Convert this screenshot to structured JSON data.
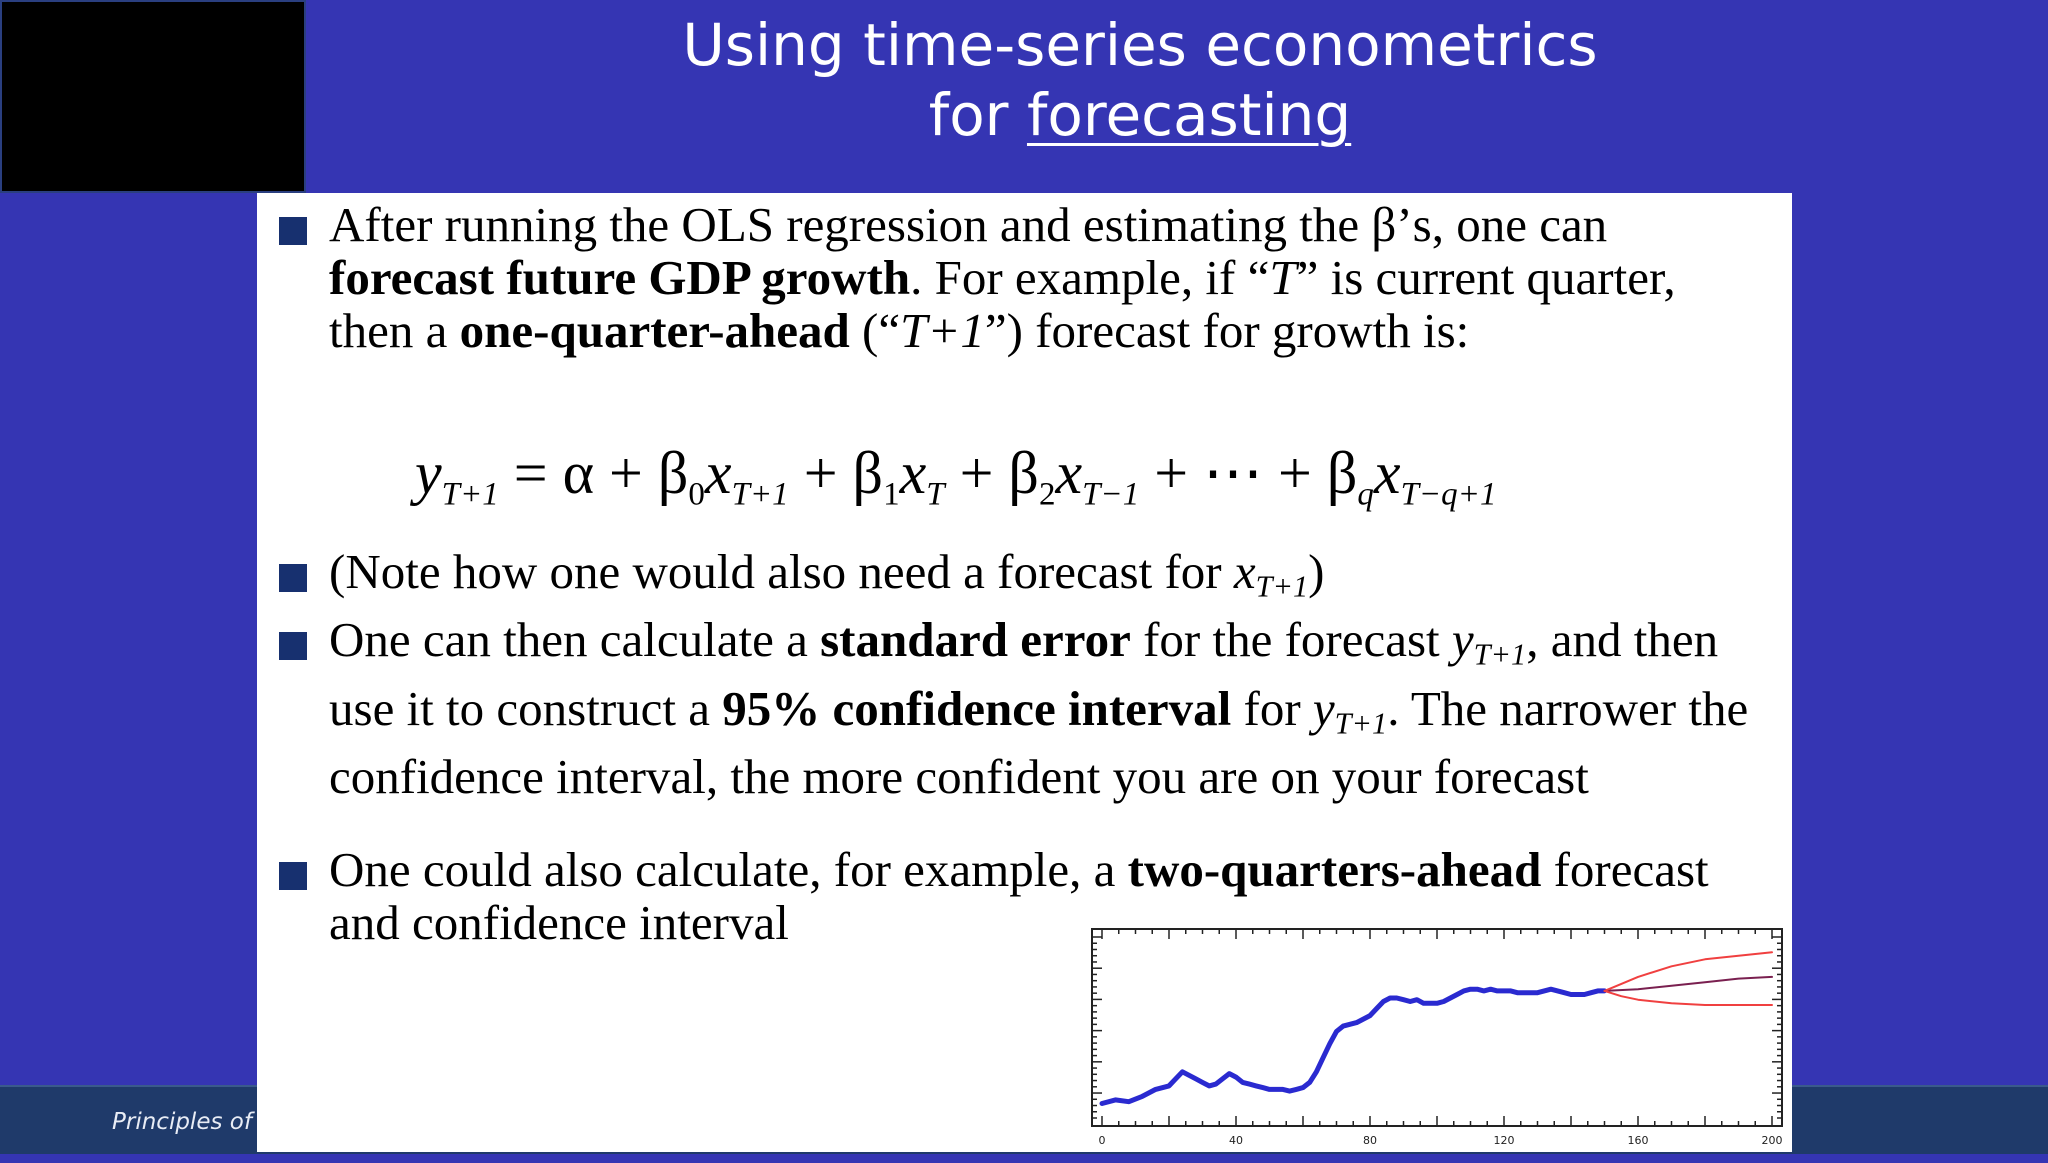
{
  "slide": {
    "title_line1": "Using time-series econometrics",
    "title_line2_prefix": "for ",
    "title_line2_link": "forecasting",
    "footer": "Principles of E"
  },
  "bullets": {
    "b1": {
      "p1": "After running the OLS regression and estimating the β’s, one can ",
      "p2": "forecast future GDP growth",
      "p3": ". For example, if “",
      "p4": "T",
      "p5": "” is current quarter, then a ",
      "p6": "one-quarter-ahead",
      "p7": " (“",
      "p8": "T+1",
      "p9": "”) forecast for growth is:"
    },
    "b2": {
      "p1": "(Note how one would also need a forecast for ",
      "p2": "x",
      "p3": "T+1",
      "p4": ")"
    },
    "b3": {
      "p1": "One can then calculate a ",
      "p2": "standard error",
      "p3": " for the forecast ",
      "p4": "y",
      "p5": "T+1",
      "p6": ", and then use it to construct a ",
      "p7": "95% confidence interval",
      "p8": " for ",
      "p9": "y",
      "p10": "T+1",
      "p11": ". The narrower the confidence interval, the more confident you are on your forecast"
    },
    "b4": {
      "p1": "One could also calculate, for example, a ",
      "p2": "two-quarters-ahead",
      "p3": " forecast and confidence interval"
    }
  },
  "equation": {
    "y": "y",
    "y_sub": "T+1",
    "eq": " = ",
    "alpha": "α",
    "plus": " + ",
    "b0": "β",
    "b0_sub": "0",
    "x0": "x",
    "x0_sub": "T+1",
    "b1": "β",
    "b1_sub": "1",
    "x1": "x",
    "x1_sub": "T",
    "b2": "β",
    "b2_sub": "2",
    "x2": "x",
    "x2_sub": "T−1",
    "dots": " + ⋯ + ",
    "bq": "β",
    "bq_sub": "q",
    "xq": "x",
    "xq_sub": "T−q+1"
  },
  "chart_data": {
    "type": "line",
    "x_ticks": [
      "0",
      "40",
      "80",
      "120",
      "160",
      "200"
    ],
    "xlim": [
      0,
      200
    ],
    "ylim": [
      0,
      1
    ],
    "colors": {
      "history": "#2a2ad0",
      "forecast": "#7a2050",
      "band": "#f04040"
    },
    "series": [
      {
        "x": [
          0,
          4,
          8,
          12,
          16,
          20,
          22,
          24,
          26,
          28,
          30,
          32,
          34,
          36,
          38,
          40,
          42,
          44,
          46,
          48,
          50,
          52,
          54,
          56,
          58,
          60,
          62,
          64,
          66,
          68,
          70,
          72,
          74,
          76,
          78,
          80,
          82,
          84,
          86,
          88,
          90,
          92,
          94,
          96,
          98,
          100,
          102,
          104,
          106,
          108,
          110,
          112,
          114,
          116,
          118,
          120,
          122,
          124,
          126,
          128,
          130,
          132,
          134,
          136,
          138,
          140,
          142,
          144,
          146,
          148,
          150
        ],
        "y": [
          0.16,
          0.18,
          0.17,
          0.2,
          0.24,
          0.26,
          0.3,
          0.34,
          0.32,
          0.3,
          0.28,
          0.26,
          0.27,
          0.3,
          0.33,
          0.31,
          0.28,
          0.27,
          0.26,
          0.25,
          0.24,
          0.24,
          0.24,
          0.23,
          0.24,
          0.25,
          0.28,
          0.34,
          0.42,
          0.5,
          0.57,
          0.6,
          0.61,
          0.62,
          0.64,
          0.66,
          0.7,
          0.74,
          0.76,
          0.76,
          0.75,
          0.74,
          0.75,
          0.73,
          0.73,
          0.73,
          0.74,
          0.76,
          0.78,
          0.8,
          0.81,
          0.81,
          0.8,
          0.81,
          0.8,
          0.8,
          0.8,
          0.79,
          0.79,
          0.79,
          0.79,
          0.8,
          0.81,
          0.8,
          0.79,
          0.78,
          0.78,
          0.78,
          0.79,
          0.8,
          0.8
        ]
      },
      {
        "x": [
          150,
          160,
          170,
          180,
          190,
          200
        ],
        "y": [
          0.8,
          0.81,
          0.83,
          0.85,
          0.87,
          0.88
        ]
      },
      {
        "x": [
          150,
          155,
          160,
          170,
          180,
          190,
          200
        ],
        "y": [
          0.8,
          0.84,
          0.88,
          0.94,
          0.98,
          1.0,
          1.02
        ]
      },
      {
        "x": [
          150,
          155,
          160,
          170,
          180,
          190,
          200
        ],
        "y": [
          0.8,
          0.77,
          0.75,
          0.73,
          0.72,
          0.72,
          0.72
        ]
      }
    ]
  }
}
